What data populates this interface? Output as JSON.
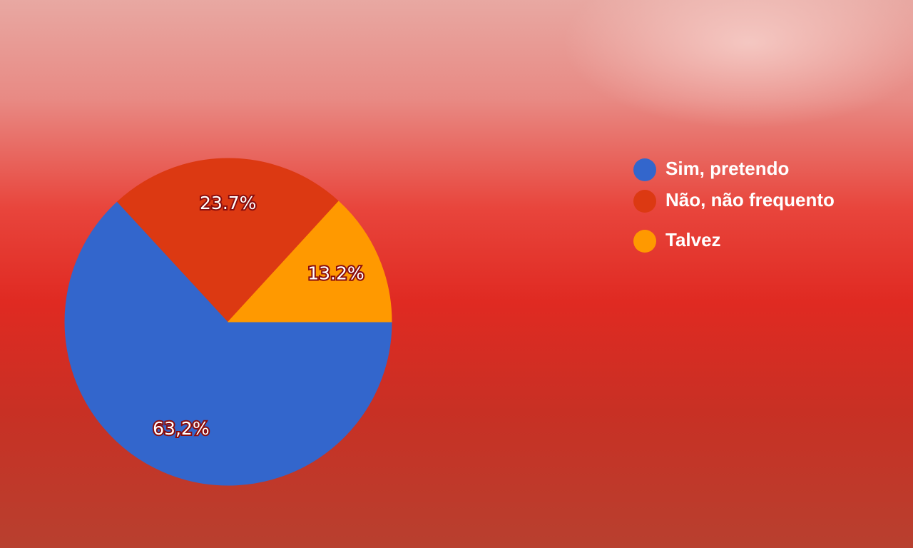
{
  "chart_data": {
    "type": "pie",
    "categories": [
      "Sim, pretendo",
      "Não, não frequento",
      "Talvez"
    ],
    "values": [
      63.2,
      23.7,
      13.2
    ],
    "value_labels": [
      "63,2%",
      "23.7%",
      "13.2%"
    ],
    "colors": [
      "#3366cc",
      "#dc3912",
      "#ff9900"
    ],
    "legend": "right"
  }
}
